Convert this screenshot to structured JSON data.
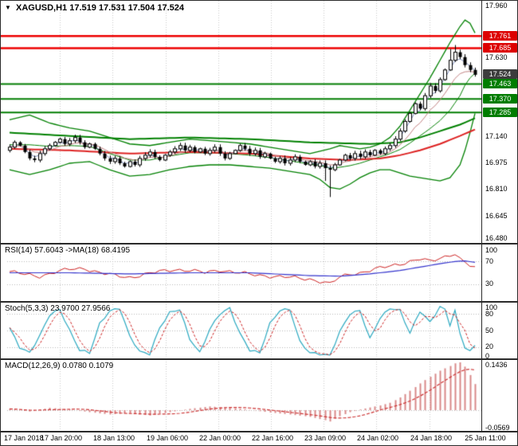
{
  "title": {
    "arrow": "▼",
    "symbol": "XAGUSD,H1",
    "quote": "17.519 17.531 17.504 17.524"
  },
  "colors": {
    "background": "#ffffff",
    "grid": "#c8c8c8",
    "candle": "#000000",
    "bollinger": "#008000",
    "ma_green": "#008000",
    "ma_red": "#dd2222",
    "resistance": "#ee0000",
    "support": "#007d00",
    "rsi_line": "#cc2222",
    "rsi_ma": "#3333cc",
    "stoch_line": "#2aa8c0",
    "stoch_signal": "#cc2222",
    "macd_hist": "#d98989",
    "macd_signal": "#cc3333",
    "tag_text": "#ffffff",
    "current_price_tag_bg": "#3c3c3c"
  },
  "main": {
    "price_tags": [
      {
        "label": "17.761",
        "price": 17.761,
        "bg": "#dd0000"
      },
      {
        "label": "17.685",
        "price": 17.685,
        "bg": "#dd0000"
      },
      {
        "label": "17.524",
        "price": 17.524,
        "bg": "#3c3c3c"
      },
      {
        "label": "17.463",
        "price": 17.463,
        "bg": "#007d00"
      },
      {
        "label": "17.370",
        "price": 17.37,
        "bg": "#007d00"
      },
      {
        "label": "17.285",
        "price": 17.285,
        "bg": "#007d00"
      }
    ],
    "levels": [
      {
        "price": 17.761,
        "color": "#ee0000",
        "width": 2.5
      },
      {
        "price": 17.685,
        "color": "#ee0000",
        "width": 2.5
      },
      {
        "price": 17.463,
        "color": "#007d00",
        "width": 2
      },
      {
        "price": 17.37,
        "color": "#007d00",
        "width": 2
      },
      {
        "price": 17.285,
        "color": "#007d00",
        "width": 2
      }
    ]
  },
  "panels": {
    "rsi": {
      "label": "RSI(14) 57.6043 ->MA(18) 68.4195"
    },
    "stoch": {
      "label": "Stoch(5,3,3) 23.9700 27.9566"
    },
    "macd": {
      "label": "MACD(12,26,9) 0.0780 0.1079"
    }
  },
  "chart_data": {
    "type": "candlestick",
    "symbol": "XAGUSD",
    "timeframe": "H1",
    "ohlc_current": {
      "open": 17.519,
      "high": 17.531,
      "low": 17.504,
      "close": 17.524
    },
    "price_axis": {
      "min": 16.48,
      "max": 17.96,
      "tick_step": 0.165
    },
    "price_ticks": [
      "17.960",
      "17.630",
      "17.140",
      "16.975",
      "16.810",
      "16.645",
      "16.480"
    ],
    "time_labels": [
      "17 Jan 2018",
      "17 Jan 20:00",
      "18 Jan 13:00",
      "19 Jan 06:00",
      "22 Jan 00:00",
      "22 Jan 16:00",
      "23 Jan 09:00",
      "24 Jan 02:00",
      "24 Jan 18:00",
      "25 Jan 11:00"
    ],
    "open_first": 17.05,
    "closes": [
      17.07,
      17.1,
      17.08,
      17.04,
      17.0,
      16.99,
      17.03,
      17.06,
      17.08,
      17.1,
      17.12,
      17.09,
      17.11,
      17.13,
      17.1,
      17.07,
      17.09,
      17.06,
      17.03,
      17.0,
      16.98,
      17.0,
      16.97,
      16.95,
      16.98,
      16.96,
      17.0,
      17.02,
      17.04,
      17.01,
      16.99,
      17.02,
      17.04,
      17.06,
      17.08,
      17.05,
      17.07,
      17.04,
      17.06,
      17.03,
      17.05,
      17.07,
      17.03,
      17.0,
      17.03,
      17.05,
      17.08,
      17.06,
      17.03,
      17.05,
      17.01,
      17.03,
      17.0,
      16.98,
      17.0,
      16.97,
      16.99,
      17.01,
      16.98,
      16.96,
      16.98,
      16.95,
      16.97,
      16.94,
      16.93,
      16.96,
      16.99,
      17.02,
      17.0,
      17.03,
      17.01,
      17.04,
      17.02,
      17.05,
      17.03,
      17.06,
      17.08,
      17.12,
      17.17,
      17.23,
      17.28,
      17.34,
      17.31,
      17.39,
      17.45,
      17.42,
      17.49,
      17.55,
      17.61,
      17.66,
      17.63,
      17.58,
      17.55,
      17.52
    ],
    "wick_overrides": {
      "63": {
        "low": 16.86
      },
      "64": {
        "low": 16.76
      },
      "88": {
        "high": 17.68
      },
      "89": {
        "high": 17.705
      }
    },
    "bollinger_upper": [
      [
        0,
        17.24
      ],
      [
        4,
        17.27
      ],
      [
        8,
        17.22
      ],
      [
        12,
        17.19
      ],
      [
        16,
        17.17
      ],
      [
        20,
        17.13
      ],
      [
        24,
        17.09
      ],
      [
        28,
        17.08
      ],
      [
        32,
        17.1
      ],
      [
        36,
        17.12
      ],
      [
        40,
        17.11
      ],
      [
        44,
        17.1
      ],
      [
        48,
        17.09
      ],
      [
        52,
        17.07
      ],
      [
        56,
        17.05
      ],
      [
        60,
        17.03
      ],
      [
        64,
        17.06
      ],
      [
        66,
        17.08
      ],
      [
        68,
        17.07
      ],
      [
        70,
        17.06
      ],
      [
        72,
        17.07
      ],
      [
        74,
        17.09
      ],
      [
        76,
        17.13
      ],
      [
        78,
        17.2
      ],
      [
        80,
        17.3
      ],
      [
        82,
        17.4
      ],
      [
        84,
        17.5
      ],
      [
        86,
        17.61
      ],
      [
        88,
        17.72
      ],
      [
        90,
        17.82
      ],
      [
        91,
        17.86
      ],
      [
        92,
        17.84
      ],
      [
        93,
        17.78
      ]
    ],
    "bollinger_lower": [
      [
        0,
        16.93
      ],
      [
        4,
        16.9
      ],
      [
        8,
        16.93
      ],
      [
        12,
        16.97
      ],
      [
        16,
        16.98
      ],
      [
        20,
        16.93
      ],
      [
        24,
        16.89
      ],
      [
        28,
        16.9
      ],
      [
        32,
        16.93
      ],
      [
        36,
        16.95
      ],
      [
        40,
        16.96
      ],
      [
        44,
        16.96
      ],
      [
        48,
        16.95
      ],
      [
        52,
        16.94
      ],
      [
        56,
        16.92
      ],
      [
        60,
        16.9
      ],
      [
        62,
        16.87
      ],
      [
        64,
        16.82
      ],
      [
        66,
        16.81
      ],
      [
        68,
        16.84
      ],
      [
        70,
        16.88
      ],
      [
        72,
        16.91
      ],
      [
        74,
        16.93
      ],
      [
        76,
        16.93
      ],
      [
        78,
        16.91
      ],
      [
        80,
        16.89
      ],
      [
        82,
        16.88
      ],
      [
        84,
        16.87
      ],
      [
        86,
        16.86
      ],
      [
        88,
        16.88
      ],
      [
        90,
        16.96
      ],
      [
        91,
        17.05
      ],
      [
        92,
        17.16
      ],
      [
        93,
        17.28
      ]
    ],
    "ma_slow_green": [
      [
        0,
        17.16
      ],
      [
        12,
        17.14
      ],
      [
        24,
        17.12
      ],
      [
        36,
        17.13
      ],
      [
        48,
        17.12
      ],
      [
        60,
        17.1
      ],
      [
        72,
        17.09
      ],
      [
        78,
        17.1
      ],
      [
        82,
        17.13
      ],
      [
        86,
        17.17
      ],
      [
        90,
        17.21
      ],
      [
        93,
        17.25
      ]
    ],
    "ma_slow_red": [
      [
        0,
        17.06
      ],
      [
        12,
        17.05
      ],
      [
        24,
        17.03
      ],
      [
        36,
        17.04
      ],
      [
        48,
        17.03
      ],
      [
        60,
        17.0
      ],
      [
        68,
        16.99
      ],
      [
        74,
        17.0
      ],
      [
        78,
        17.02
      ],
      [
        82,
        17.05
      ],
      [
        86,
        17.09
      ],
      [
        90,
        17.14
      ],
      [
        93,
        17.18
      ]
    ],
    "horizontal_levels": {
      "resistance": [
        17.761,
        17.685
      ],
      "support": [
        17.463,
        17.37,
        17.285
      ]
    },
    "rsi": {
      "value": 57.6043,
      "ma_value": 68.4195,
      "range": [
        0,
        100
      ],
      "levels": [
        70,
        30
      ],
      "ticks": [
        "100",
        "70",
        "30"
      ],
      "line": [
        [
          0,
          52
        ],
        [
          3,
          47
        ],
        [
          6,
          44
        ],
        [
          9,
          51
        ],
        [
          12,
          56
        ],
        [
          15,
          58
        ],
        [
          18,
          50
        ],
        [
          21,
          45
        ],
        [
          24,
          42
        ],
        [
          27,
          47
        ],
        [
          30,
          52
        ],
        [
          33,
          56
        ],
        [
          36,
          54
        ],
        [
          39,
          50
        ],
        [
          42,
          55
        ],
        [
          45,
          51
        ],
        [
          48,
          47
        ],
        [
          51,
          45
        ],
        [
          54,
          43
        ],
        [
          57,
          41
        ],
        [
          60,
          39
        ],
        [
          63,
          33
        ],
        [
          64,
          30
        ],
        [
          66,
          42
        ],
        [
          68,
          48
        ],
        [
          70,
          50
        ],
        [
          72,
          54
        ],
        [
          74,
          58
        ],
        [
          76,
          62
        ],
        [
          78,
          66
        ],
        [
          80,
          70
        ],
        [
          82,
          74
        ],
        [
          84,
          70
        ],
        [
          86,
          76
        ],
        [
          88,
          82
        ],
        [
          89,
          84
        ],
        [
          90,
          74
        ],
        [
          91,
          68
        ],
        [
          92,
          62
        ],
        [
          93,
          58
        ]
      ],
      "ma_line": [
        [
          0,
          50
        ],
        [
          12,
          50
        ],
        [
          24,
          48
        ],
        [
          36,
          50
        ],
        [
          48,
          50
        ],
        [
          60,
          45
        ],
        [
          66,
          44
        ],
        [
          72,
          48
        ],
        [
          78,
          54
        ],
        [
          82,
          60
        ],
        [
          86,
          66
        ],
        [
          89,
          70
        ],
        [
          91,
          71
        ],
        [
          93,
          68.4
        ]
      ]
    },
    "stochastic": {
      "k": 23.97,
      "d": 27.9566,
      "range": [
        0,
        100
      ],
      "levels": [
        80,
        50,
        20
      ],
      "ticks": [
        "100",
        "80",
        "50",
        "20",
        "0"
      ],
      "line": [
        [
          0,
          55
        ],
        [
          2,
          20
        ],
        [
          4,
          10
        ],
        [
          6,
          40
        ],
        [
          8,
          78
        ],
        [
          10,
          88
        ],
        [
          12,
          50
        ],
        [
          14,
          15
        ],
        [
          16,
          10
        ],
        [
          18,
          62
        ],
        [
          20,
          85
        ],
        [
          22,
          90
        ],
        [
          24,
          40
        ],
        [
          26,
          12
        ],
        [
          28,
          8
        ],
        [
          30,
          55
        ],
        [
          32,
          82
        ],
        [
          34,
          88
        ],
        [
          36,
          35
        ],
        [
          38,
          10
        ],
        [
          40,
          52
        ],
        [
          42,
          80
        ],
        [
          44,
          90
        ],
        [
          46,
          45
        ],
        [
          48,
          15
        ],
        [
          50,
          10
        ],
        [
          52,
          62
        ],
        [
          54,
          86
        ],
        [
          56,
          88
        ],
        [
          58,
          30
        ],
        [
          60,
          10
        ],
        [
          62,
          8
        ],
        [
          64,
          5
        ],
        [
          66,
          48
        ],
        [
          68,
          80
        ],
        [
          70,
          86
        ],
        [
          72,
          35
        ],
        [
          74,
          72
        ],
        [
          76,
          90
        ],
        [
          78,
          86
        ],
        [
          80,
          45
        ],
        [
          82,
          85
        ],
        [
          84,
          65
        ],
        [
          86,
          92
        ],
        [
          87,
          88
        ],
        [
          88,
          60
        ],
        [
          89,
          85
        ],
        [
          90,
          45
        ],
        [
          91,
          20
        ],
        [
          92,
          12
        ],
        [
          93,
          24
        ]
      ]
    },
    "macd": {
      "value": 0.078,
      "signal": 0.1079,
      "range": [
        -0.0569,
        0.1436
      ],
      "ticks": [
        "0.1436",
        "-0.0569"
      ],
      "hist": [
        [
          0,
          0.004
        ],
        [
          4,
          -0.004
        ],
        [
          8,
          0.007
        ],
        [
          12,
          0.002
        ],
        [
          16,
          -0.006
        ],
        [
          20,
          -0.013
        ],
        [
          24,
          -0.009
        ],
        [
          28,
          -0.016
        ],
        [
          32,
          -0.006
        ],
        [
          36,
          0.004
        ],
        [
          40,
          0.011
        ],
        [
          44,
          0.007
        ],
        [
          48,
          0.001
        ],
        [
          52,
          -0.007
        ],
        [
          56,
          -0.013
        ],
        [
          60,
          -0.02
        ],
        [
          63,
          -0.03
        ],
        [
          64,
          -0.034
        ],
        [
          66,
          -0.018
        ],
        [
          68,
          -0.006
        ],
        [
          70,
          0.002
        ],
        [
          72,
          0.008
        ],
        [
          74,
          0.014
        ],
        [
          76,
          0.022
        ],
        [
          78,
          0.038
        ],
        [
          80,
          0.058
        ],
        [
          82,
          0.08
        ],
        [
          84,
          0.1
        ],
        [
          86,
          0.118
        ],
        [
          88,
          0.132
        ],
        [
          89,
          0.14
        ],
        [
          90,
          0.143
        ],
        [
          91,
          0.13
        ],
        [
          92,
          0.105
        ],
        [
          93,
          0.078
        ]
      ]
    }
  }
}
